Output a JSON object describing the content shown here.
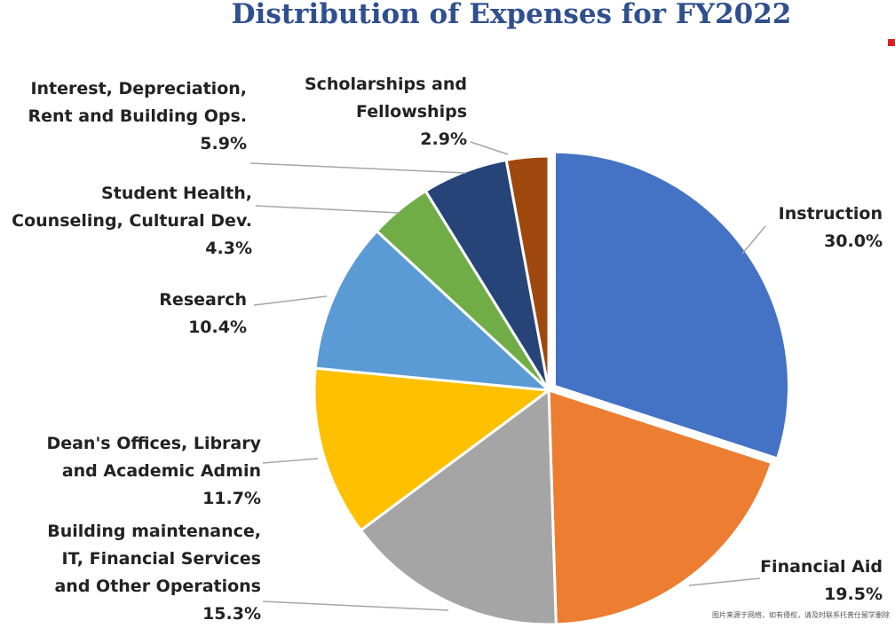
{
  "chart_data": {
    "type": "pie",
    "title": "Distribution of Expenses for FY2022",
    "slices": [
      {
        "label_lines": [
          "Instruction"
        ],
        "value_label": "30.0%",
        "value": 30.0,
        "color": "#4472c4"
      },
      {
        "label_lines": [
          "Financial Aid"
        ],
        "value_label": "19.5%",
        "value": 19.5,
        "color": "#ed7d31"
      },
      {
        "label_lines": [
          "Building maintenance,",
          "IT, Financial Services",
          "and Other Operations"
        ],
        "value_label": "15.3%",
        "value": 15.3,
        "color": "#a5a5a5"
      },
      {
        "label_lines": [
          "Dean's Offices, Library",
          "and Academic Admin"
        ],
        "value_label": "11.7%",
        "value": 11.7,
        "color": "#ffc000"
      },
      {
        "label_lines": [
          "Research"
        ],
        "value_label": "10.4%",
        "value": 10.4,
        "color": "#5b9bd5"
      },
      {
        "label_lines": [
          "Student Health,",
          "Counseling, Cultural Dev."
        ],
        "value_label": "4.3%",
        "value": 4.3,
        "color": "#70ad47"
      },
      {
        "label_lines": [
          "Interest, Depreciation,",
          "Rent and Building Ops."
        ],
        "value_label": "5.9%",
        "value": 5.9,
        "color": "#264478"
      },
      {
        "label_lines": [
          "Scholarships and",
          "Fellowships"
        ],
        "value_label": "2.9%",
        "value": 2.9,
        "color": "#9e480e"
      }
    ],
    "legend": "none"
  },
  "watermark": "图片来源于网络，如有侵权，请及时联系托普仕留学删除"
}
